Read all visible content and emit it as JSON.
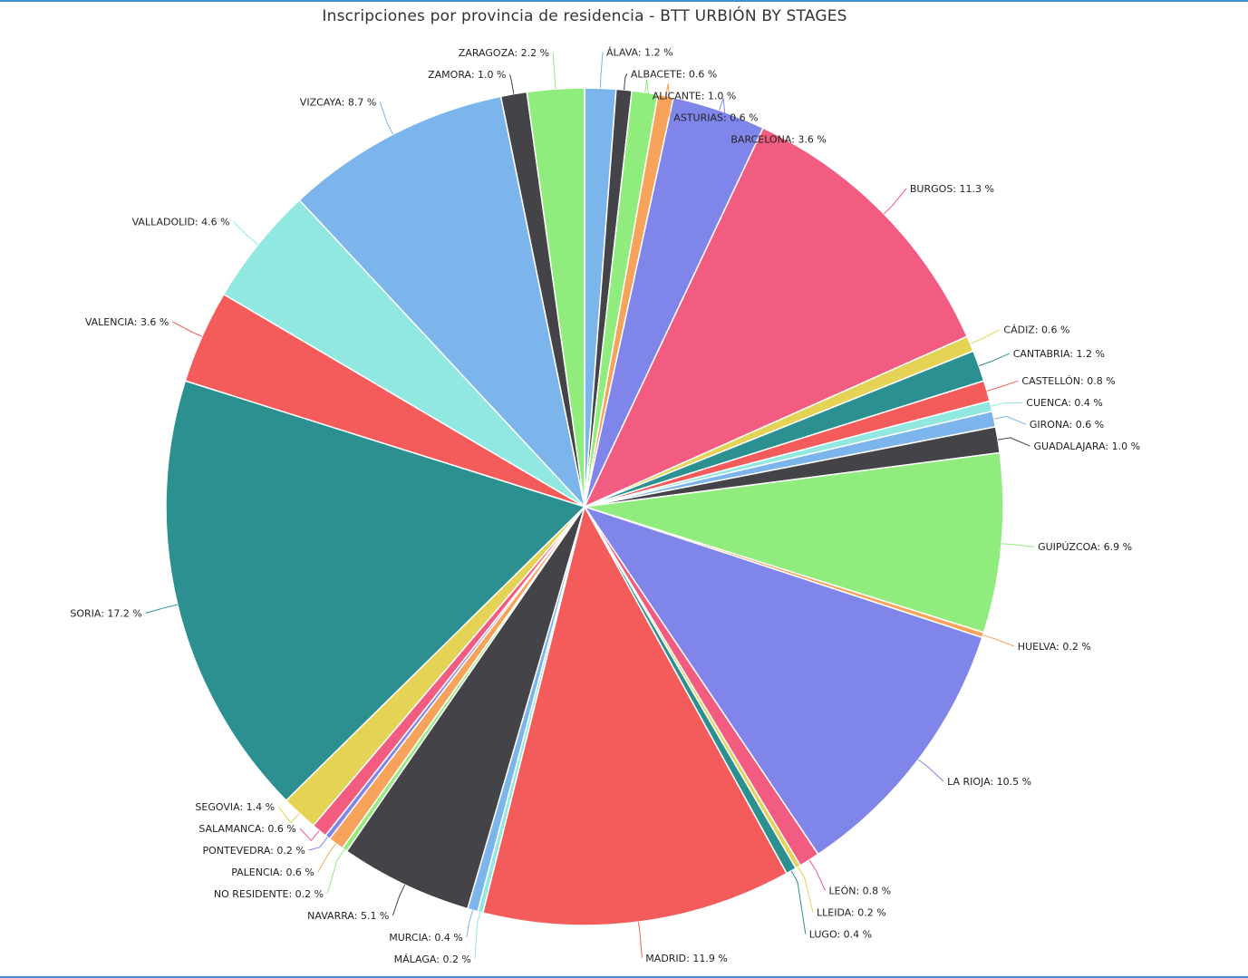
{
  "chart_data": {
    "type": "pie",
    "title": "Inscripciones por provincia de residencia - BTT URBIÓN BY STAGES",
    "unit": "%",
    "slices": [
      {
        "name": "ÁLAVA",
        "label": "ÁLAVA: 1.2 %",
        "value": 1.2,
        "color": "#7cb5ec"
      },
      {
        "name": "ALBACETE",
        "label": "ALBACETE: 0.6 %",
        "value": 0.6,
        "color": "#434348"
      },
      {
        "name": "ALICANTE",
        "label": "ALICANTE: 1.0 %",
        "value": 1.0,
        "color": "#90ed7d"
      },
      {
        "name": "ASTURIAS",
        "label": "ASTURIAS: 0.6 %",
        "value": 0.6,
        "color": "#f7a35c"
      },
      {
        "name": "BARCELONA",
        "label": "BARCELONA: 3.6 %",
        "value": 3.6,
        "color": "#8085e9"
      },
      {
        "name": "BURGOS",
        "label": "BURGOS: 11.3 %",
        "value": 11.3,
        "color": "#f15c80"
      },
      {
        "name": "CÁDIZ",
        "label": "CÁDIZ: 0.6 %",
        "value": 0.6,
        "color": "#e4d354"
      },
      {
        "name": "CANTABRIA",
        "label": "CANTABRIA: 1.2 %",
        "value": 1.2,
        "color": "#2b908f"
      },
      {
        "name": "CASTELLÓN",
        "label": "CASTELLÓN: 0.8 %",
        "value": 0.8,
        "color": "#f45b5b"
      },
      {
        "name": "CUENCA",
        "label": "CUENCA: 0.4 %",
        "value": 0.4,
        "color": "#91e8e1"
      },
      {
        "name": "GIRONA",
        "label": "GIRONA: 0.6 %",
        "value": 0.6,
        "color": "#7cb5ec"
      },
      {
        "name": "GUADALAJARA",
        "label": "GUADALAJARA: 1.0 %",
        "value": 1.0,
        "color": "#434348"
      },
      {
        "name": "GUIPÚZCOA",
        "label": "GUIPÚZCOA: 6.9 %",
        "value": 6.9,
        "color": "#90ed7d"
      },
      {
        "name": "HUELVA",
        "label": "HUELVA: 0.2 %",
        "value": 0.2,
        "color": "#f7a35c"
      },
      {
        "name": "LA RIOJA",
        "label": "LA RIOJA: 10.5 %",
        "value": 10.5,
        "color": "#8085e9"
      },
      {
        "name": "LEÓN",
        "label": "LEÓN: 0.8 %",
        "value": 0.8,
        "color": "#f15c80"
      },
      {
        "name": "LLEIDA",
        "label": "LLEIDA: 0.2 %",
        "value": 0.2,
        "color": "#e4d354"
      },
      {
        "name": "LUGO",
        "label": "LUGO: 0.4 %",
        "value": 0.4,
        "color": "#2b908f"
      },
      {
        "name": "MADRID",
        "label": "MADRID: 11.9 %",
        "value": 11.9,
        "color": "#f45b5b"
      },
      {
        "name": "MÁLAGA",
        "label": "MÁLAGA: 0.2 %",
        "value": 0.2,
        "color": "#91e8e1"
      },
      {
        "name": "MURCIA",
        "label": "MURCIA: 0.4 %",
        "value": 0.4,
        "color": "#7cb5ec"
      },
      {
        "name": "NAVARRA",
        "label": "NAVARRA: 5.1 %",
        "value": 5.1,
        "color": "#434348"
      },
      {
        "name": "NO RESIDENTE",
        "label": "NO RESIDENTE: 0.2 %",
        "value": 0.2,
        "color": "#90ed7d"
      },
      {
        "name": "PALENCIA",
        "label": "PALENCIA: 0.6 %",
        "value": 0.6,
        "color": "#f7a35c"
      },
      {
        "name": "PONTEVEDRA",
        "label": "PONTEVEDRA: 0.2 %",
        "value": 0.2,
        "color": "#8085e9"
      },
      {
        "name": "SALAMANCA",
        "label": "SALAMANCA: 0.6 %",
        "value": 0.6,
        "color": "#f15c80"
      },
      {
        "name": "SEGOVIA",
        "label": "SEGOVIA: 1.4 %",
        "value": 1.4,
        "color": "#e4d354"
      },
      {
        "name": "SORIA",
        "label": "SORIA: 17.2 %",
        "value": 17.2,
        "color": "#2b908f"
      },
      {
        "name": "VALENCIA",
        "label": "VALENCIA: 3.6 %",
        "value": 3.6,
        "color": "#f45b5b"
      },
      {
        "name": "VALLADOLID",
        "label": "VALLADOLID: 4.6 %",
        "value": 4.6,
        "color": "#91e8e1"
      },
      {
        "name": "VIZCAYA",
        "label": "VIZCAYA: 8.7 %",
        "value": 8.7,
        "color": "#7cb5ec"
      },
      {
        "name": "ZAMORA",
        "label": "ZAMORA: 1.0 %",
        "value": 1.0,
        "color": "#434348"
      },
      {
        "name": "ZARAGOZA",
        "label": "ZARAGOZA: 2.2 %",
        "value": 2.2,
        "color": "#90ed7d"
      }
    ]
  }
}
